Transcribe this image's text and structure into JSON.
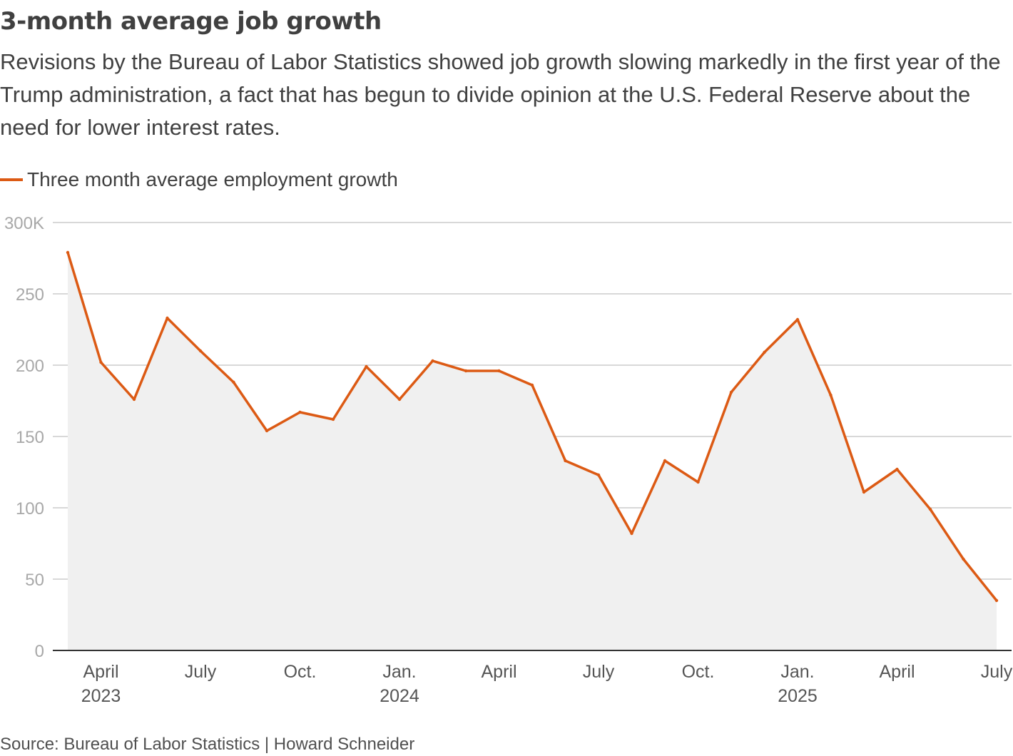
{
  "title": "3-month average job growth",
  "subtitle": "Revisions by the Bureau of Labor Statistics showed job growth slowing markedly in the first year of the Trump administration, a fact that has begun to divide opinion at the U.S. Federal Reserve about the need for lower interest rates.",
  "source": "Source: Bureau of Labor Statistics | Howard Schneider",
  "colors": {
    "line": "#dc5a14",
    "area": "#f0f0f0",
    "grid": "#cccccc",
    "axis": "#333333",
    "tick_label": "#a8a8a8",
    "x_label": "#555555"
  },
  "chart_data": {
    "type": "line",
    "title": "3-month average job growth",
    "xlabel": "",
    "ylabel": "",
    "ylim": [
      0,
      300
    ],
    "yticks": [
      {
        "value": 0,
        "label": "0"
      },
      {
        "value": 50,
        "label": "50"
      },
      {
        "value": 100,
        "label": "100"
      },
      {
        "value": 150,
        "label": "150"
      },
      {
        "value": 200,
        "label": "200"
      },
      {
        "value": 250,
        "label": "250"
      },
      {
        "value": 300,
        "label": "300K"
      }
    ],
    "xticks": [
      {
        "index": 1,
        "label": "April",
        "year": "2023"
      },
      {
        "index": 4,
        "label": "July",
        "year": ""
      },
      {
        "index": 7,
        "label": "Oct.",
        "year": ""
      },
      {
        "index": 10,
        "label": "Jan.",
        "year": "2024"
      },
      {
        "index": 13,
        "label": "April",
        "year": ""
      },
      {
        "index": 16,
        "label": "July",
        "year": ""
      },
      {
        "index": 19,
        "label": "Oct.",
        "year": ""
      },
      {
        "index": 22,
        "label": "Jan.",
        "year": "2025"
      },
      {
        "index": 25,
        "label": "April",
        "year": ""
      },
      {
        "index": 28,
        "label": "July",
        "year": ""
      }
    ],
    "grid": true,
    "legend_position": "top-left",
    "x": [
      "Mar 2023",
      "Apr 2023",
      "May 2023",
      "Jun 2023",
      "Jul 2023",
      "Aug 2023",
      "Sep 2023",
      "Oct 2023",
      "Nov 2023",
      "Dec 2023",
      "Jan 2024",
      "Feb 2024",
      "Mar 2024",
      "Apr 2024",
      "May 2024",
      "Jun 2024",
      "Jul 2024",
      "Aug 2024",
      "Sep 2024",
      "Oct 2024",
      "Nov 2024",
      "Dec 2024",
      "Jan 2025",
      "Feb 2025",
      "Mar 2025",
      "Apr 2025",
      "May 2025",
      "Jun 2025",
      "Jul 2025"
    ],
    "series": [
      {
        "name": "Three month average employment growth",
        "values": [
          279,
          202,
          176,
          233,
          210,
          188,
          154,
          167,
          162,
          199,
          176,
          203,
          196,
          196,
          186,
          133,
          123,
          82,
          133,
          118,
          181,
          209,
          232,
          179,
          111,
          127,
          99,
          64,
          35
        ]
      }
    ]
  }
}
